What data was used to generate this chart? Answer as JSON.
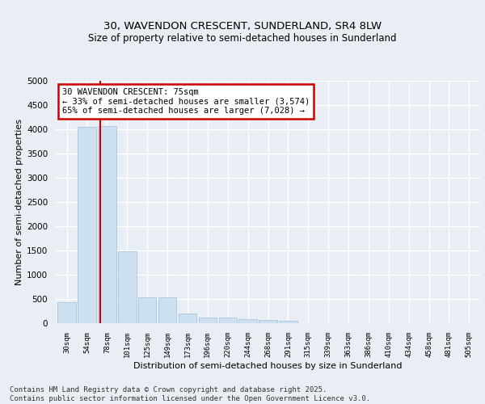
{
  "title": "30, WAVENDON CRESCENT, SUNDERLAND, SR4 8LW",
  "subtitle": "Size of property relative to semi-detached houses in Sunderland",
  "xlabel": "Distribution of semi-detached houses by size in Sunderland",
  "ylabel": "Number of semi-detached properties",
  "categories": [
    "30sqm",
    "54sqm",
    "78sqm",
    "101sqm",
    "125sqm",
    "149sqm",
    "173sqm",
    "196sqm",
    "220sqm",
    "244sqm",
    "268sqm",
    "291sqm",
    "315sqm",
    "339sqm",
    "363sqm",
    "386sqm",
    "410sqm",
    "434sqm",
    "458sqm",
    "481sqm",
    "505sqm"
  ],
  "values": [
    430,
    4050,
    4060,
    1480,
    540,
    540,
    195,
    115,
    115,
    90,
    65,
    50,
    0,
    0,
    0,
    0,
    0,
    0,
    0,
    0,
    0
  ],
  "bar_color": "#cce0f0",
  "bar_edge_color": "#aac8e0",
  "red_line_x": 1.67,
  "property_label": "30 WAVENDON CRESCENT: 75sqm",
  "smaller_text": "← 33% of semi-detached houses are smaller (3,574)",
  "larger_text": "65% of semi-detached houses are larger (7,028) →",
  "annotation_box_color": "#ffffff",
  "annotation_box_edge": "#cc0000",
  "ylim": [
    0,
    5000
  ],
  "yticks": [
    0,
    500,
    1000,
    1500,
    2000,
    2500,
    3000,
    3500,
    4000,
    4500,
    5000
  ],
  "background_color": "#e8eef4",
  "grid_color": "#ffffff",
  "footer": "Contains HM Land Registry data © Crown copyright and database right 2025.\nContains public sector information licensed under the Open Government Licence v3.0."
}
